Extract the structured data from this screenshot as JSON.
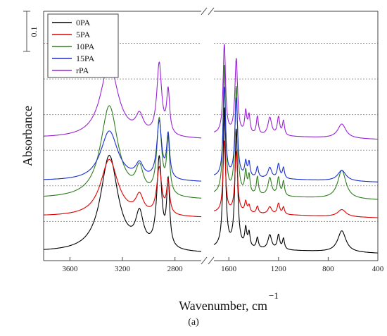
{
  "chart_data": {
    "type": "line",
    "xlabel": "Wavenumber, cm",
    "xlabel_superscript": "−1",
    "ylabel": "Absorbance",
    "scale_bar_label": "0.1",
    "caption": "(a)",
    "x_axis_reversed": true,
    "x_axis_broken": true,
    "x_segments": [
      {
        "range": [
          3800,
          2600
        ],
        "ticks": [
          3600,
          3200,
          2800
        ]
      },
      {
        "range": [
          1720,
          400
        ],
        "ticks": [
          1600,
          1200,
          800,
          400
        ]
      }
    ],
    "ylim": [
      -0.02,
      0.68
    ],
    "scale_bar_value": 0.1,
    "reference_lines_y": [
      0.09,
      0.19,
      0.29,
      0.39,
      0.49,
      0.59
    ],
    "legend_position": "top-left",
    "series": [
      {
        "name": "0PA",
        "color": "#000000",
        "offset": 0.0,
        "peaks": [
          [
            3300,
            0.27,
            80
          ],
          [
            3070,
            0.09,
            35
          ],
          [
            2920,
            0.25,
            22
          ],
          [
            2852,
            0.18,
            14
          ],
          [
            1636,
            0.39,
            12
          ],
          [
            1540,
            0.33,
            13
          ],
          [
            1464,
            0.05,
            10
          ],
          [
            1437,
            0.04,
            10
          ],
          [
            1370,
            0.03,
            10
          ],
          [
            1270,
            0.04,
            18
          ],
          [
            1200,
            0.04,
            12
          ],
          [
            1160,
            0.03,
            10
          ],
          [
            690,
            0.06,
            40
          ]
        ]
      },
      {
        "name": "5PA",
        "color": "#e00000",
        "offset": 0.1,
        "peaks": [
          [
            3300,
            0.16,
            80
          ],
          [
            3070,
            0.05,
            35
          ],
          [
            2920,
            0.13,
            22
          ],
          [
            2852,
            0.09,
            14
          ],
          [
            1636,
            0.2,
            12
          ],
          [
            1540,
            0.17,
            13
          ],
          [
            1464,
            0.03,
            10
          ],
          [
            1437,
            0.02,
            10
          ],
          [
            1370,
            0.02,
            10
          ],
          [
            1270,
            0.02,
            18
          ],
          [
            1200,
            0.03,
            12
          ],
          [
            1160,
            0.02,
            10
          ],
          [
            690,
            0.02,
            40
          ]
        ]
      },
      {
        "name": "10PA",
        "color": "#2e7d1e",
        "offset": 0.15,
        "peaks": [
          [
            3300,
            0.26,
            80
          ],
          [
            3070,
            0.07,
            35
          ],
          [
            2920,
            0.21,
            22
          ],
          [
            2852,
            0.15,
            14
          ],
          [
            1636,
            0.36,
            12
          ],
          [
            1540,
            0.3,
            13
          ],
          [
            1464,
            0.06,
            10
          ],
          [
            1437,
            0.05,
            10
          ],
          [
            1370,
            0.05,
            10
          ],
          [
            1270,
            0.05,
            18
          ],
          [
            1200,
            0.05,
            12
          ],
          [
            1160,
            0.04,
            10
          ],
          [
            690,
            0.08,
            40
          ]
        ]
      },
      {
        "name": "15PA",
        "color": "#1a2fd0",
        "offset": 0.2,
        "peaks": [
          [
            3300,
            0.14,
            80
          ],
          [
            3070,
            0.04,
            35
          ],
          [
            2920,
            0.16,
            22
          ],
          [
            2852,
            0.12,
            14
          ],
          [
            1636,
            0.25,
            12
          ],
          [
            1540,
            0.22,
            13
          ],
          [
            1464,
            0.04,
            10
          ],
          [
            1437,
            0.04,
            10
          ],
          [
            1370,
            0.03,
            10
          ],
          [
            1270,
            0.03,
            18
          ],
          [
            1200,
            0.04,
            12
          ],
          [
            1160,
            0.03,
            10
          ],
          [
            690,
            0.03,
            40
          ]
        ]
      },
      {
        "name": "rPA",
        "color": "#9b22d6",
        "offset": 0.32,
        "peaks": [
          [
            3300,
            0.21,
            80
          ],
          [
            3070,
            0.05,
            35
          ],
          [
            2920,
            0.2,
            22
          ],
          [
            2852,
            0.12,
            14
          ],
          [
            1636,
            0.25,
            12
          ],
          [
            1540,
            0.21,
            13
          ],
          [
            1464,
            0.06,
            10
          ],
          [
            1437,
            0.05,
            10
          ],
          [
            1370,
            0.05,
            10
          ],
          [
            1270,
            0.05,
            18
          ],
          [
            1200,
            0.05,
            12
          ],
          [
            1160,
            0.04,
            10
          ],
          [
            690,
            0.04,
            40
          ]
        ]
      }
    ]
  }
}
